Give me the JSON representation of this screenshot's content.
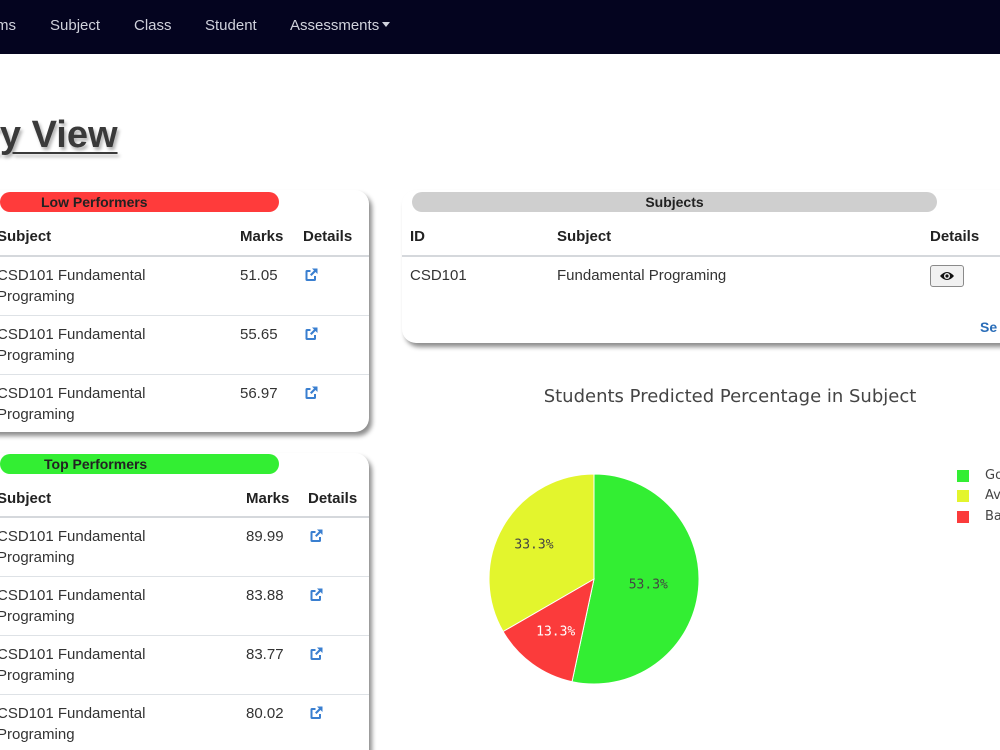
{
  "nav": {
    "items": [
      "ms",
      "Subject",
      "Class",
      "Student"
    ],
    "dropdown": "Assessments"
  },
  "page": {
    "title": "ary View"
  },
  "low_performers": {
    "title": "Low Performers",
    "headers": {
      "subject": "Subject",
      "marks": "Marks",
      "details": "Details"
    },
    "rows": [
      {
        "subject": "CSD101 Fundamental Programing",
        "marks": "51.05"
      },
      {
        "subject": "CSD101 Fundamental Programing",
        "marks": "55.65"
      },
      {
        "subject": "CSD101 Fundamental Programing",
        "marks": "56.97"
      }
    ]
  },
  "top_performers": {
    "title": "Top Performers",
    "headers": {
      "subject": "Subject",
      "marks": "Marks",
      "details": "Details"
    },
    "rows": [
      {
        "subject": "CSD101 Fundamental Programing",
        "marks": "89.99"
      },
      {
        "subject": "CSD101 Fundamental Programing",
        "marks": "83.88"
      },
      {
        "subject": "CSD101 Fundamental Programing",
        "marks": "83.77"
      },
      {
        "subject": "CSD101 Fundamental Programing",
        "marks": "80.02"
      }
    ]
  },
  "subjects": {
    "title": "Subjects",
    "headers": {
      "id": "ID",
      "subject": "Subject",
      "details": "Details"
    },
    "rows": [
      {
        "id": "CSD101",
        "subject": "Fundamental Programing"
      }
    ],
    "see_more": "Se"
  },
  "chart_data": {
    "type": "pie",
    "title": "Students Predicted Percentage in Subject",
    "labels": [
      "Go",
      "Av",
      "Ba"
    ],
    "values": [
      53.3,
      33.3,
      13.3
    ],
    "display_labels": [
      "53.3%",
      "33.3%",
      "13.3%"
    ],
    "colors": [
      "#33ee33",
      "#e3f52d",
      "#fb3b3b"
    ],
    "legend_position": "right"
  }
}
